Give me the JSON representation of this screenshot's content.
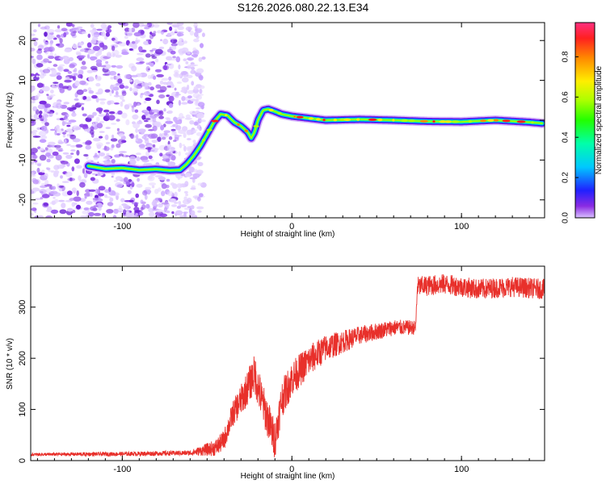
{
  "title": "S126.2026.080.22.13.E34",
  "chart_data": [
    {
      "type": "heatmap",
      "name": "spectrogram",
      "xlabel": "Height of straight line (km)",
      "ylabel": "Frequency (Hz)",
      "xlim": [
        -154,
        149
      ],
      "ylim": [
        -24.5,
        24.5
      ],
      "xticks": [
        -100,
        0,
        100
      ],
      "yticks": [
        -20,
        -10,
        0,
        10,
        20
      ],
      "noise_region_x": [
        -154,
        -58
      ],
      "ridge": {
        "x": [
          -120,
          -110,
          -100,
          -90,
          -80,
          -72,
          -66,
          -62,
          -58,
          -54,
          -50,
          -46,
          -42,
          -38,
          -34,
          -30,
          -26,
          -24,
          -22,
          -20,
          -17,
          -14,
          -10,
          -6,
          0,
          10,
          20,
          40,
          60,
          80,
          100,
          120,
          140,
          148
        ],
        "y": [
          -11.5,
          -12.2,
          -12.0,
          -12.5,
          -12.3,
          -12.6,
          -12.5,
          -11.0,
          -9.0,
          -6.5,
          -3.5,
          -0.5,
          1.5,
          1.2,
          -0.5,
          -1.5,
          -3.0,
          -4.5,
          -3.0,
          0.0,
          2.5,
          2.8,
          2.2,
          1.5,
          1.0,
          0.5,
          0.0,
          0.2,
          0.0,
          -0.3,
          -0.4,
          0.0,
          -0.5,
          -0.8
        ]
      },
      "colorbar": {
        "label": "Normalized spectral amplitude",
        "range": [
          0.0,
          0.97
        ],
        "ticks": [
          0.0,
          0.2,
          0.4,
          0.6,
          0.8
        ]
      }
    },
    {
      "type": "line",
      "name": "snr",
      "xlabel": "Height of straight line (km)",
      "ylabel": "SNR (10 * v/v)",
      "xlim": [
        -154,
        149
      ],
      "ylim": [
        0,
        380
      ],
      "xticks": [
        -100,
        0,
        100
      ],
      "yticks": [
        0,
        100,
        200,
        300
      ],
      "color": "#e8302b",
      "trend": {
        "x": [
          -154,
          -100,
          -60,
          -45,
          -40,
          -35,
          -28,
          -22,
          -18,
          -12,
          -10,
          -6,
          0,
          10,
          20,
          40,
          60,
          73,
          74,
          90,
          110,
          130,
          149
        ],
        "y": [
          12,
          13,
          15,
          25,
          40,
          90,
          130,
          170,
          120,
          60,
          40,
          120,
          160,
          195,
          220,
          245,
          260,
          260,
          340,
          345,
          335,
          340,
          335
        ]
      },
      "noise": {
        "x": [
          -154,
          -60,
          -40,
          -20,
          0,
          40,
          73,
          74,
          149
        ],
        "amp": [
          3,
          5,
          20,
          40,
          35,
          18,
          14,
          20,
          20
        ]
      }
    }
  ]
}
